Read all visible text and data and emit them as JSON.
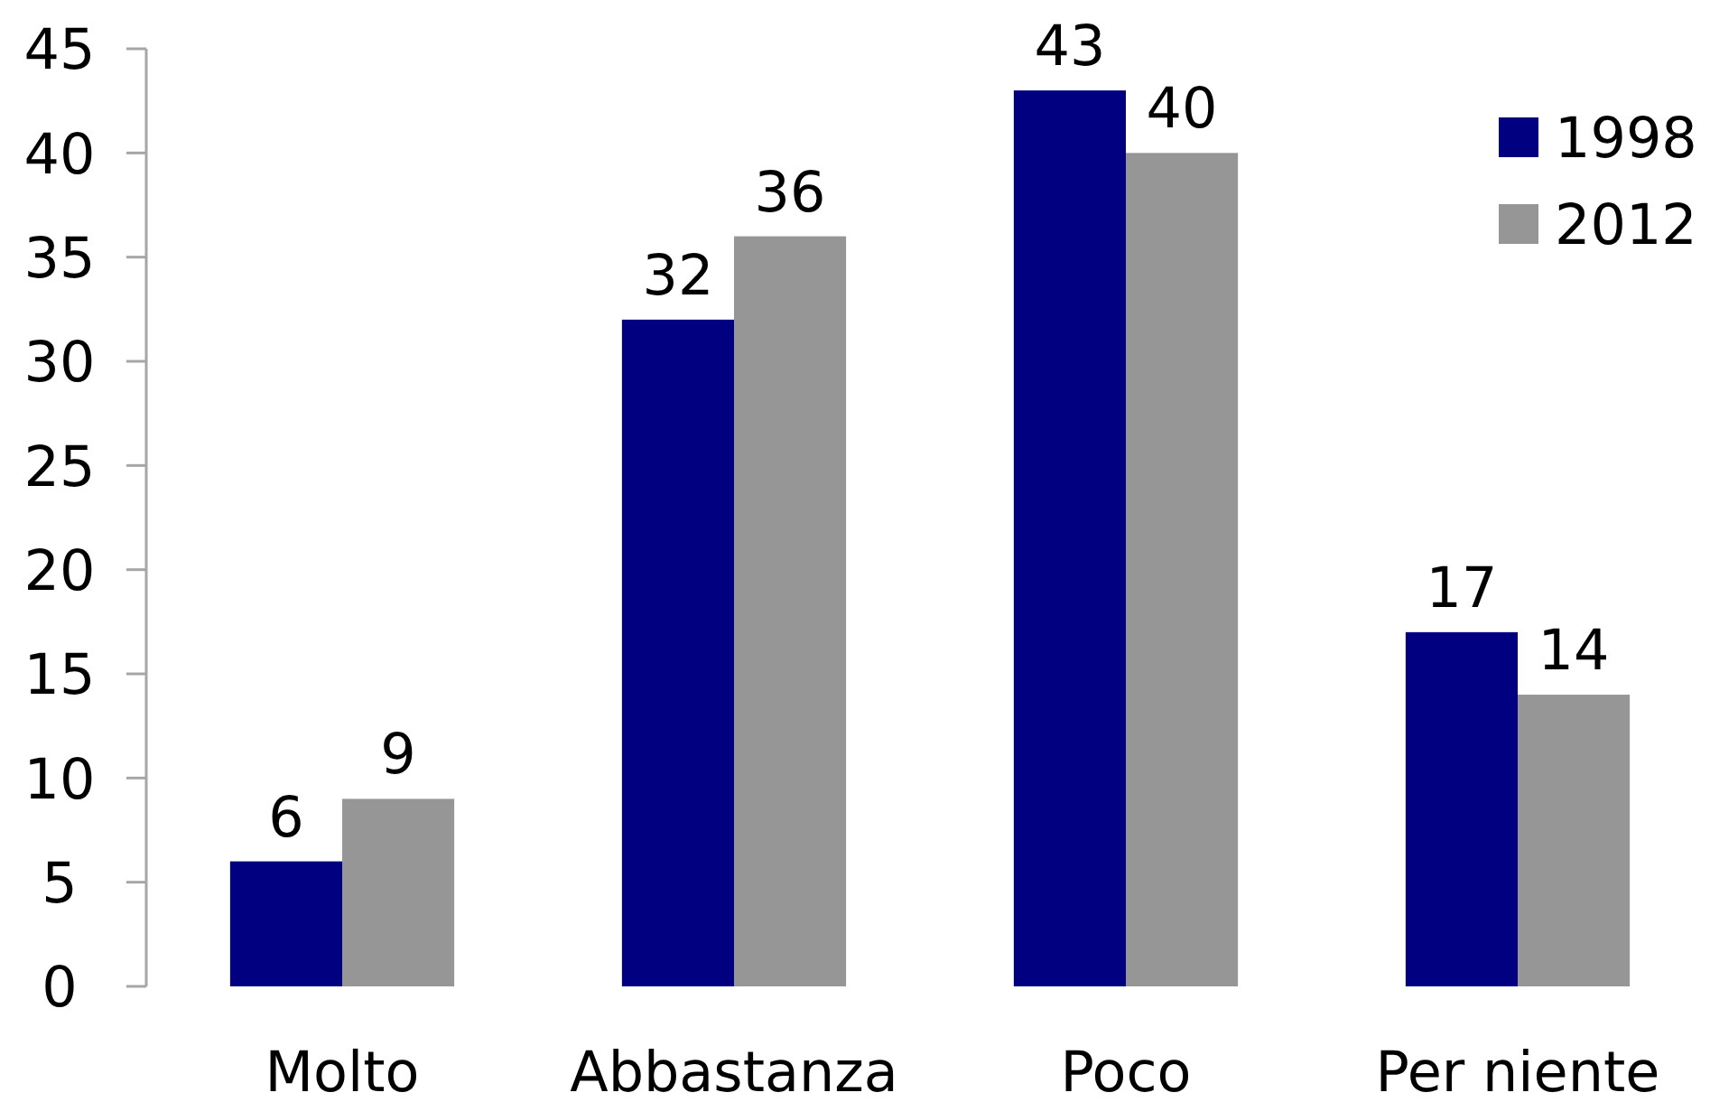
{
  "chart_data": {
    "type": "bar",
    "categories": [
      "Molto",
      "Abbastanza",
      "Poco",
      "Per niente"
    ],
    "series": [
      {
        "name": "1998",
        "color": "#000080",
        "values": [
          6,
          32,
          43,
          17
        ]
      },
      {
        "name": "2012",
        "color": "#969696",
        "values": [
          9,
          36,
          40,
          14
        ]
      }
    ],
    "ylim": [
      0,
      45
    ],
    "yticks": [
      0,
      5,
      10,
      15,
      20,
      25,
      30,
      35,
      40,
      45
    ],
    "data_labels": true,
    "legend": "top right"
  }
}
